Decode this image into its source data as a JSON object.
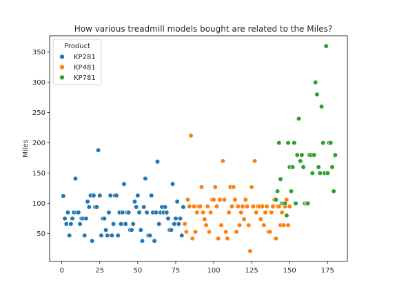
{
  "chart_data": {
    "type": "scatter",
    "title": "How various treadmill models bought are related to the Miles?",
    "xlabel": "",
    "ylabel": "Miles",
    "xlim": [
      -8,
      188
    ],
    "ylim": [
      4,
      377
    ],
    "xticks": [
      0,
      25,
      50,
      75,
      100,
      125,
      150,
      175
    ],
    "yticks": [
      50,
      100,
      150,
      200,
      250,
      300,
      350
    ],
    "grid": false,
    "legend": {
      "title": "Product",
      "position": "top-left"
    },
    "series": [
      {
        "name": "KP281",
        "color": "#1f77b4",
        "points": [
          [
            1,
            112
          ],
          [
            2,
            75
          ],
          [
            3,
            66
          ],
          [
            4,
            85
          ],
          [
            5,
            47
          ],
          [
            6,
            66
          ],
          [
            7,
            75
          ],
          [
            8,
            85
          ],
          [
            9,
            141
          ],
          [
            10,
            85
          ],
          [
            11,
            85
          ],
          [
            12,
            66
          ],
          [
            13,
            75
          ],
          [
            14,
            75
          ],
          [
            15,
            47
          ],
          [
            16,
            75
          ],
          [
            17,
            103
          ],
          [
            18,
            94
          ],
          [
            19,
            113
          ],
          [
            20,
            38
          ],
          [
            21,
            113
          ],
          [
            22,
            94
          ],
          [
            23,
            94
          ],
          [
            24,
            188
          ],
          [
            25,
            113
          ],
          [
            26,
            47
          ],
          [
            27,
            75
          ],
          [
            28,
            75
          ],
          [
            29,
            56
          ],
          [
            30,
            47
          ],
          [
            31,
            85
          ],
          [
            32,
            113
          ],
          [
            33,
            47
          ],
          [
            34,
            66
          ],
          [
            35,
            113
          ],
          [
            36,
            113
          ],
          [
            37,
            47
          ],
          [
            38,
            85
          ],
          [
            39,
            66
          ],
          [
            40,
            85
          ],
          [
            41,
            132
          ],
          [
            42,
            66
          ],
          [
            43,
            85
          ],
          [
            44,
            85
          ],
          [
            45,
            56
          ],
          [
            46,
            56
          ],
          [
            47,
            66
          ],
          [
            48,
            103
          ],
          [
            49,
            94
          ],
          [
            50,
            113
          ],
          [
            51,
            85
          ],
          [
            52,
            56
          ],
          [
            53,
            38
          ],
          [
            54,
            94
          ],
          [
            55,
            141
          ],
          [
            56,
            85
          ],
          [
            57,
            47
          ],
          [
            58,
            47
          ],
          [
            59,
            113
          ],
          [
            60,
            85
          ],
          [
            61,
            38
          ],
          [
            62,
            85
          ],
          [
            63,
            169
          ],
          [
            64,
            66
          ],
          [
            65,
            85
          ],
          [
            66,
            94
          ],
          [
            67,
            85
          ],
          [
            68,
            94
          ],
          [
            69,
            85
          ],
          [
            70,
            75
          ],
          [
            71,
            56
          ],
          [
            72,
            56
          ],
          [
            73,
            132
          ],
          [
            74,
            66
          ],
          [
            75,
            75
          ],
          [
            76,
            103
          ],
          [
            77,
            66
          ],
          [
            78,
            75
          ],
          [
            79,
            47
          ],
          [
            80,
            94
          ]
        ]
      },
      {
        "name": "KP481",
        "color": "#ff7f0e",
        "points": [
          [
            81,
            66
          ],
          [
            82,
            53
          ],
          [
            83,
            106
          ],
          [
            84,
            95
          ],
          [
            85,
            212
          ],
          [
            86,
            42
          ],
          [
            87,
            95
          ],
          [
            88,
            53
          ],
          [
            89,
            85
          ],
          [
            90,
            95
          ],
          [
            91,
            95
          ],
          [
            92,
            127
          ],
          [
            93,
            85
          ],
          [
            94,
            74
          ],
          [
            95,
            64
          ],
          [
            96,
            95
          ],
          [
            97,
            53
          ],
          [
            98,
            85
          ],
          [
            99,
            106
          ],
          [
            100,
            106
          ],
          [
            101,
            127
          ],
          [
            102,
            95
          ],
          [
            103,
            42
          ],
          [
            104,
            106
          ],
          [
            105,
            64
          ],
          [
            106,
            170
          ],
          [
            107,
            106
          ],
          [
            108,
            53
          ],
          [
            109,
            42
          ],
          [
            110,
            85
          ],
          [
            111,
            127
          ],
          [
            112,
            95
          ],
          [
            113,
            127
          ],
          [
            114,
            106
          ],
          [
            115,
            53
          ],
          [
            116,
            95
          ],
          [
            117,
            64
          ],
          [
            118,
            85
          ],
          [
            119,
            95
          ],
          [
            120,
            74
          ],
          [
            121,
            106
          ],
          [
            122,
            95
          ],
          [
            123,
            64
          ],
          [
            124,
            21
          ],
          [
            125,
            127
          ],
          [
            126,
            95
          ],
          [
            127,
            170
          ],
          [
            128,
            85
          ],
          [
            129,
            95
          ],
          [
            130,
            95
          ],
          [
            131,
            74
          ],
          [
            132,
            95
          ],
          [
            133,
            64
          ],
          [
            134,
            85
          ],
          [
            135,
            95
          ],
          [
            136,
            53
          ],
          [
            137,
            53
          ],
          [
            138,
            85
          ],
          [
            139,
            95
          ],
          [
            140,
            106
          ],
          [
            141,
            42
          ],
          [
            142,
            95
          ],
          [
            143,
            95
          ],
          [
            144,
            64
          ],
          [
            145,
            85
          ],
          [
            146,
            64
          ],
          [
            147,
            95
          ],
          [
            148,
            106
          ],
          [
            149,
            64
          ],
          [
            150,
            95
          ]
        ]
      },
      {
        "name": "KP781",
        "color": "#2ca02c",
        "points": [
          [
            141,
            106
          ],
          [
            142,
            120
          ],
          [
            143,
            200
          ],
          [
            144,
            140
          ],
          [
            145,
            100
          ],
          [
            146,
            100
          ],
          [
            147,
            100
          ],
          [
            148,
            80
          ],
          [
            149,
            200
          ],
          [
            150,
            160
          ],
          [
            151,
            120
          ],
          [
            152,
            160
          ],
          [
            153,
            200
          ],
          [
            154,
            100
          ],
          [
            155,
            180
          ],
          [
            156,
            240
          ],
          [
            157,
            170
          ],
          [
            158,
            180
          ],
          [
            159,
            160
          ],
          [
            160,
            100
          ],
          [
            161,
            100
          ],
          [
            162,
            100
          ],
          [
            163,
            180
          ],
          [
            164,
            180
          ],
          [
            165,
            150
          ],
          [
            166,
            180
          ],
          [
            167,
            300
          ],
          [
            168,
            280
          ],
          [
            169,
            160
          ],
          [
            170,
            150
          ],
          [
            171,
            260
          ],
          [
            172,
            200
          ],
          [
            173,
            150
          ],
          [
            174,
            360
          ],
          [
            175,
            150
          ],
          [
            176,
            200
          ],
          [
            177,
            200
          ],
          [
            178,
            160
          ],
          [
            179,
            120
          ],
          [
            180,
            180
          ]
        ]
      }
    ]
  }
}
